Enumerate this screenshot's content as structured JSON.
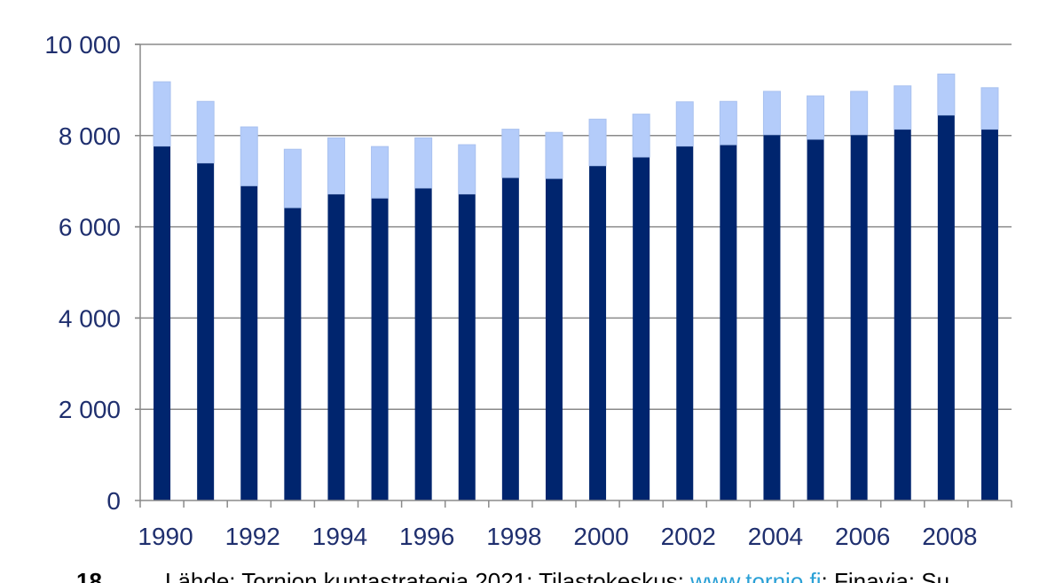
{
  "chart_data": {
    "type": "bar",
    "stacked": true,
    "categories": [
      "1990",
      "1991",
      "1992",
      "1993",
      "1994",
      "1995",
      "1996",
      "1997",
      "1998",
      "1999",
      "2000",
      "2001",
      "2002",
      "2003",
      "2004",
      "2005",
      "2006",
      "2007",
      "2008",
      "2009"
    ],
    "x_tick_labels": [
      "1990",
      "1992",
      "1994",
      "1996",
      "1998",
      "2000",
      "2002",
      "2004",
      "2006",
      "2008"
    ],
    "y_tick_labels": [
      "0",
      "2 000",
      "4 000",
      "6 000",
      "8 000",
      "10 000"
    ],
    "ylim": [
      0,
      10000
    ],
    "grid": true,
    "series": [
      {
        "values": [
          7770,
          7400,
          6900,
          6420,
          6720,
          6630,
          6850,
          6720,
          7080,
          7060,
          7340,
          7530,
          7770,
          7800,
          8020,
          7920,
          8020,
          8140,
          8450,
          8140
        ],
        "color": "#00256e"
      },
      {
        "values": [
          1410,
          1350,
          1290,
          1280,
          1230,
          1130,
          1100,
          1080,
          1060,
          1010,
          1020,
          940,
          970,
          950,
          950,
          950,
          950,
          950,
          900,
          910
        ],
        "color": "#b4ccfa"
      }
    ]
  },
  "footer": {
    "page_number": "18",
    "source_prefix": "Lähde: Tornion kuntastrategia 2021; Tilastokeskus; ",
    "source_link": "www.tornio.fi",
    "source_suffix": "; Finavia; Su"
  }
}
